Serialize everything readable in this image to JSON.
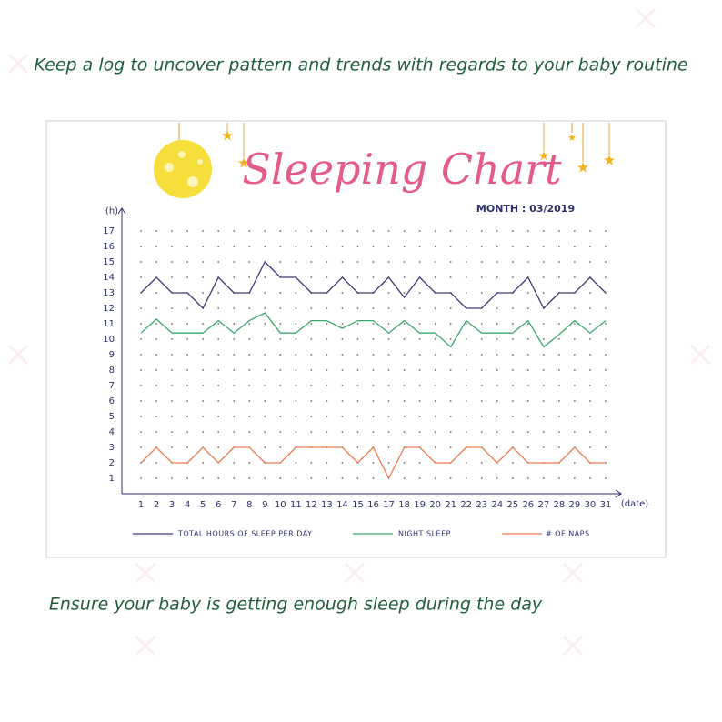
{
  "tagline": "Keep a log to uncover pattern and trends with regards to your baby routine",
  "caption": "Ensure your baby is getting enough sleep during the day",
  "chart_data": {
    "type": "line",
    "title": "Sleeping Chart",
    "subtitle": "MONTH : 03/2019",
    "x_label": "(date)",
    "y_label": "(h)",
    "x": [
      1,
      2,
      3,
      4,
      5,
      6,
      7,
      8,
      9,
      10,
      11,
      12,
      13,
      14,
      15,
      16,
      17,
      18,
      19,
      20,
      21,
      22,
      23,
      24,
      25,
      26,
      27,
      28,
      29,
      30,
      31
    ],
    "xlim": [
      0,
      32
    ],
    "xticks": [
      1,
      2,
      3,
      4,
      5,
      6,
      7,
      8,
      9,
      10,
      11,
      12,
      13,
      14,
      15,
      16,
      17,
      18,
      19,
      20,
      21,
      22,
      23,
      24,
      25,
      26,
      27,
      28,
      29,
      30,
      31
    ],
    "ylim": [
      0,
      18
    ],
    "yticks": [
      1,
      2,
      3,
      4,
      5,
      6,
      7,
      8,
      9,
      10,
      11,
      12,
      13,
      14,
      15,
      16,
      17
    ],
    "grid": "dots",
    "legend": "bottom",
    "series": [
      {
        "name": "TOTAL HOURS OF SLEEP PER DAY",
        "color": "#3b3a7a",
        "values": [
          13,
          14,
          13,
          13,
          12,
          14,
          13,
          13,
          15,
          14,
          14,
          13,
          13,
          14,
          13,
          13,
          14,
          12.7,
          14,
          13,
          13,
          12,
          12,
          13,
          13,
          14,
          12,
          13,
          13,
          14,
          13
        ]
      },
      {
        "name": "NIGHT SLEEP",
        "color": "#3aa86b",
        "values": [
          10.4,
          11.3,
          10.4,
          10.4,
          10.4,
          11.2,
          10.4,
          11.2,
          11.7,
          10.4,
          10.4,
          11.2,
          11.2,
          10.7,
          11.2,
          11.2,
          10.4,
          11.2,
          10.4,
          10.4,
          9.5,
          11.2,
          10.4,
          10.4,
          10.4,
          11.2,
          9.5,
          10.3,
          11.2,
          10.4,
          11.2
        ]
      },
      {
        "name": "# OF NAPS",
        "color": "#f07a4f",
        "values": [
          2,
          3,
          2,
          2,
          3,
          2,
          3,
          3,
          2,
          2,
          3,
          3,
          3,
          3,
          2,
          3,
          1,
          3,
          3,
          2,
          2,
          3,
          3,
          2,
          3,
          2,
          2,
          2,
          3,
          2,
          2
        ]
      }
    ]
  }
}
